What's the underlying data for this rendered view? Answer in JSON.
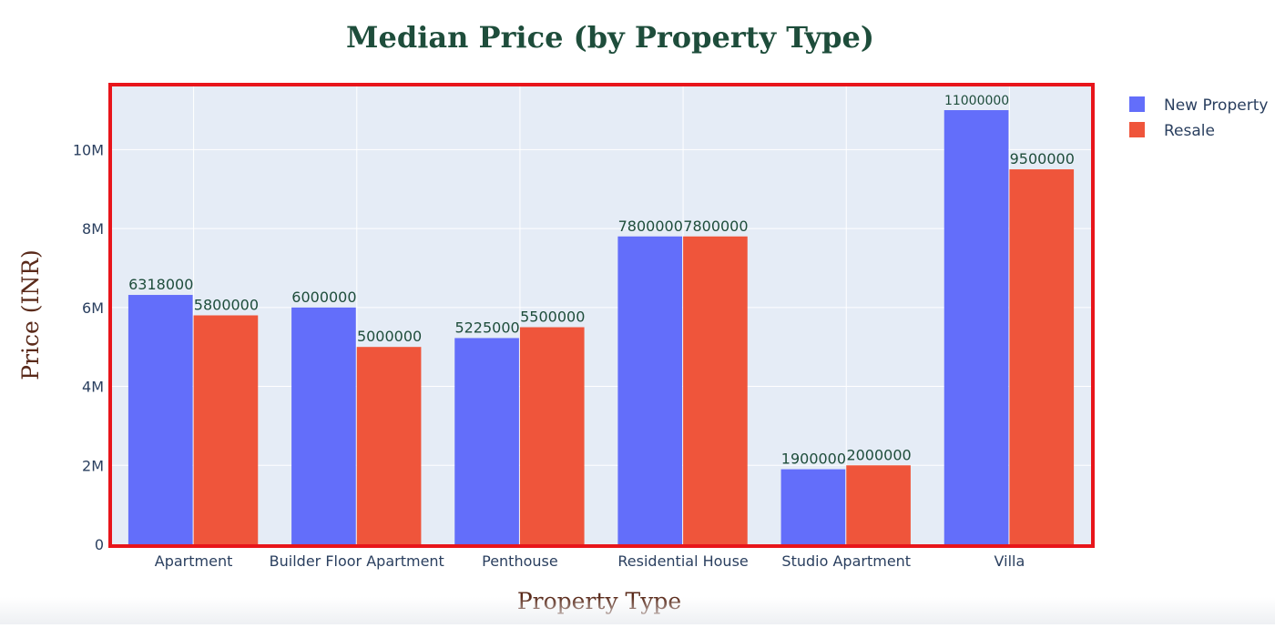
{
  "chart_data": {
    "type": "bar",
    "title": "Median Price (by Property Type)",
    "xlabel": "Property Type",
    "ylabel": "Price (INR)",
    "categories": [
      "Apartment",
      "Builder Floor Apartment",
      "Penthouse",
      "Residential House",
      "Studio Apartment",
      "Villa"
    ],
    "series": [
      {
        "name": "New Property",
        "values": [
          6318000,
          6000000,
          5225000,
          7800000,
          1900000,
          11000000
        ]
      },
      {
        "name": "Resale",
        "values": [
          5800000,
          5000000,
          5500000,
          7800000,
          2000000,
          9500000
        ]
      }
    ],
    "ylim": [
      0,
      11600000
    ],
    "yticks": [
      0,
      2000000,
      4000000,
      6000000,
      8000000,
      10000000
    ],
    "ytick_labels": [
      "0",
      "2M",
      "4M",
      "6M",
      "8M",
      "10M"
    ],
    "grid": true,
    "legend_position": "top-right",
    "colors": {
      "series": [
        "#636efa",
        "#ef553b"
      ],
      "plot_bg": "#e5ecf6",
      "grid": "#ffffff",
      "highlight_border": "#e8151b",
      "title": "#1e4d3b",
      "axis_title": "#5a2a1a",
      "tick_text": "#2a3f5f",
      "data_label": "#1e4d3b"
    }
  }
}
